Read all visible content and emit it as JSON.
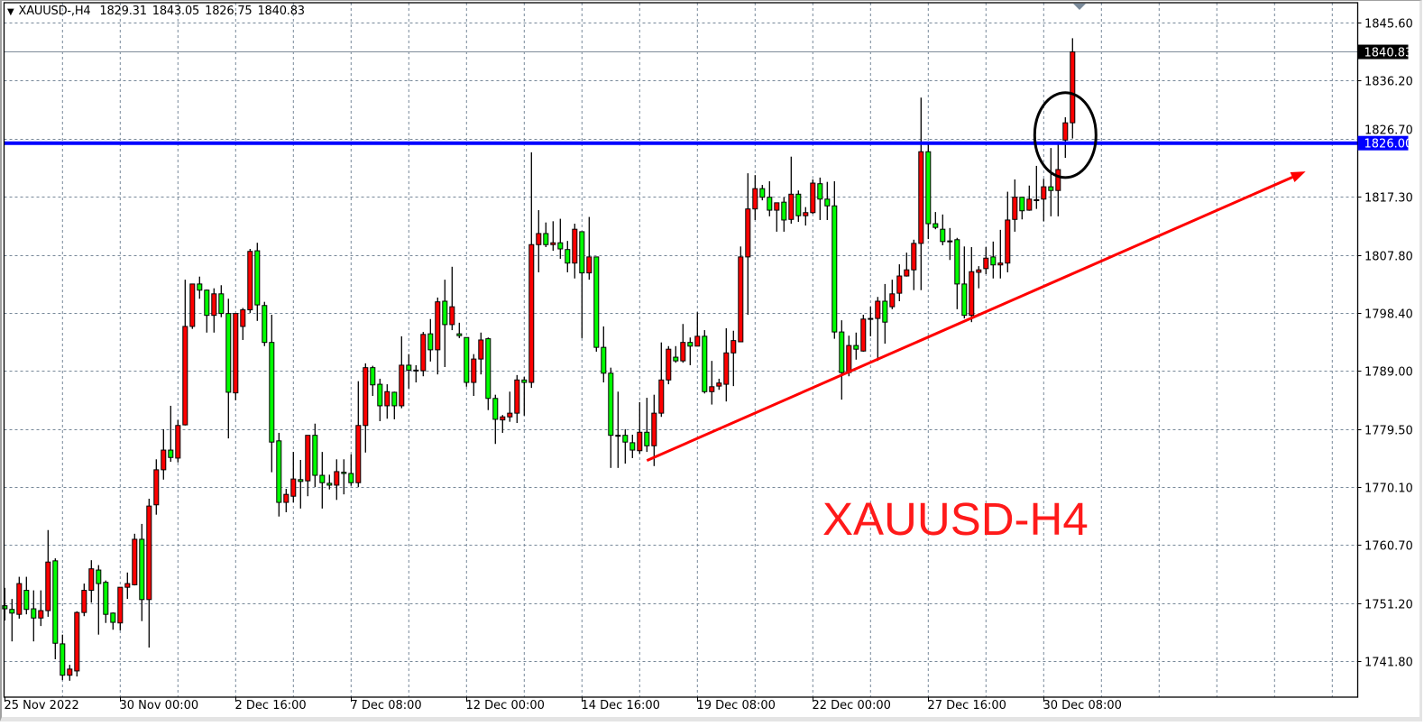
{
  "header": {
    "symbol": "XAUUSD-,H4",
    "open": "1829.31",
    "high": "1843.05",
    "low": "1826.75",
    "close": "1840.83"
  },
  "annotation_text": "XAUUSD-H4",
  "colors": {
    "bull": "#ff0000",
    "bear": "#00ff00",
    "grid": "#778899",
    "hline": "#0000ff",
    "trendline": "#ff0000",
    "ellipse": "#000000",
    "annotation_text": "#ff1a1a"
  },
  "chart_data": {
    "type": "candlestick",
    "title": "XAUUSD-,H4",
    "grid": true,
    "ylim": [
      1737.5,
      1847.9
    ],
    "y_ticks": [
      "1845.60",
      "1836.20",
      "1826.70",
      "1817.30",
      "1807.80",
      "1798.40",
      "1789.00",
      "1779.50",
      "1770.10",
      "1760.70",
      "1751.20",
      "1741.80"
    ],
    "x_tick_labels": [
      "25 Nov 2022",
      "30 Nov 00:00",
      "2 Dec 16:00",
      "7 Dec 08:00",
      "12 Dec 00:00",
      "14 Dec 16:00",
      "19 Dec 08:00",
      "22 Dec 00:00",
      "27 Dec 16:00",
      "30 Dec 08:00"
    ],
    "current_price": {
      "value": 1840.83,
      "label": "1840.83"
    },
    "horizontal_line": {
      "value": 1826.0,
      "label": "1826.00"
    },
    "trendline": {
      "start": {
        "bar": 89,
        "price": 1774.4
      },
      "end": {
        "bar": 180.3,
        "price": 1821.4
      },
      "arrow": true
    },
    "ellipse": {
      "center_bar": 147,
      "center_price": 1827.3,
      "bar_radius": 4.25,
      "price_radius": 6.9
    },
    "ohlc_order": [
      "open",
      "high",
      "low",
      "close"
    ],
    "candles": [
      [
        1750.8,
        1753.7,
        1748.4,
        1750.3
      ],
      [
        1750.2,
        1751.9,
        1745.0,
        1749.6
      ],
      [
        1749.4,
        1755.5,
        1748.7,
        1754.4
      ],
      [
        1753.3,
        1755.5,
        1749.4,
        1750.2
      ],
      [
        1750.3,
        1753.3,
        1745.0,
        1748.8
      ],
      [
        1748.8,
        1753.3,
        1747.5,
        1750.0
      ],
      [
        1750.0,
        1763.1,
        1749.0,
        1757.9
      ],
      [
        1758.1,
        1758.5,
        1742.1,
        1744.7
      ],
      [
        1744.6,
        1746.1,
        1738.7,
        1739.5
      ],
      [
        1739.5,
        1741.2,
        1738.6,
        1740.5
      ],
      [
        1740.2,
        1749.9,
        1739.3,
        1749.7
      ],
      [
        1749.7,
        1754.4,
        1749.1,
        1753.3
      ],
      [
        1753.3,
        1758.2,
        1751.3,
        1756.8
      ],
      [
        1756.6,
        1757.4,
        1746.1,
        1754.4
      ],
      [
        1754.6,
        1754.9,
        1748.0,
        1749.4
      ],
      [
        1749.6,
        1749.7,
        1746.9,
        1748.1
      ],
      [
        1748.0,
        1753.8,
        1746.8,
        1753.8
      ],
      [
        1753.8,
        1756.2,
        1751.9,
        1754.4
      ],
      [
        1754.2,
        1762.5,
        1754.1,
        1761.6
      ],
      [
        1761.6,
        1764.1,
        1748.3,
        1751.8
      ],
      [
        1751.8,
        1768.2,
        1744.0,
        1767.0
      ],
      [
        1767.2,
        1774.6,
        1765.6,
        1772.9
      ],
      [
        1772.9,
        1779.5,
        1771.3,
        1776.1
      ],
      [
        1776.1,
        1783.3,
        1774.2,
        1774.9
      ],
      [
        1774.8,
        1781.0,
        1774.1,
        1780.1
      ],
      [
        1780.2,
        1803.8,
        1780.1,
        1796.2
      ],
      [
        1796.2,
        1803.1,
        1795.8,
        1803.1
      ],
      [
        1803.1,
        1804.3,
        1800.7,
        1802.1
      ],
      [
        1802.1,
        1802.2,
        1795.2,
        1798.0
      ],
      [
        1798.0,
        1802.4,
        1795.2,
        1801.5
      ],
      [
        1801.5,
        1802.9,
        1797.7,
        1798.3
      ],
      [
        1798.3,
        1800.7,
        1778.0,
        1785.5
      ],
      [
        1785.4,
        1798.3,
        1784.2,
        1798.3
      ],
      [
        1796.2,
        1799.2,
        1794.0,
        1798.9
      ],
      [
        1798.9,
        1808.8,
        1798.4,
        1808.4
      ],
      [
        1808.5,
        1809.8,
        1797.1,
        1799.7
      ],
      [
        1799.6,
        1800.2,
        1793.0,
        1793.6
      ],
      [
        1793.6,
        1798.1,
        1772.5,
        1777.4
      ],
      [
        1777.6,
        1778.9,
        1765.3,
        1767.6
      ],
      [
        1767.6,
        1769.8,
        1766.0,
        1768.9
      ],
      [
        1768.6,
        1775.8,
        1767.6,
        1771.4
      ],
      [
        1771.3,
        1774.5,
        1766.6,
        1771.0
      ],
      [
        1771.1,
        1778.5,
        1768.6,
        1778.5
      ],
      [
        1778.5,
        1780.4,
        1770.1,
        1772.0
      ],
      [
        1772.0,
        1775.8,
        1766.6,
        1770.8
      ],
      [
        1770.7,
        1772.1,
        1769.7,
        1770.4
      ],
      [
        1770.4,
        1774.6,
        1768.0,
        1772.6
      ],
      [
        1772.5,
        1774.6,
        1768.9,
        1772.3
      ],
      [
        1772.3,
        1775.4,
        1770.3,
        1770.8
      ],
      [
        1770.8,
        1787.3,
        1770.1,
        1780.1
      ],
      [
        1780.1,
        1790.2,
        1775.7,
        1789.5
      ],
      [
        1789.5,
        1789.8,
        1784.9,
        1786.7
      ],
      [
        1786.8,
        1787.7,
        1780.8,
        1783.3
      ],
      [
        1783.3,
        1786.8,
        1781.2,
        1785.6
      ],
      [
        1785.5,
        1785.6,
        1781.1,
        1783.3
      ],
      [
        1783.3,
        1794.6,
        1782.9,
        1789.9
      ],
      [
        1789.9,
        1791.7,
        1786.1,
        1789.1
      ],
      [
        1789.1,
        1789.9,
        1787.1,
        1789.0
      ],
      [
        1789.0,
        1795.3,
        1788.1,
        1794.9
      ],
      [
        1795.0,
        1797.4,
        1790.5,
        1792.4
      ],
      [
        1792.4,
        1800.9,
        1788.4,
        1800.2
      ],
      [
        1800.3,
        1803.8,
        1789.6,
        1796.5
      ],
      [
        1796.5,
        1805.9,
        1795.6,
        1799.4
      ],
      [
        1795.0,
        1796.8,
        1794.3,
        1794.7
      ],
      [
        1794.4,
        1794.4,
        1786.4,
        1787.1
      ],
      [
        1787.1,
        1791.7,
        1784.9,
        1790.9
      ],
      [
        1790.9,
        1795.2,
        1788.4,
        1794.0
      ],
      [
        1794.2,
        1794.4,
        1782.6,
        1784.5
      ],
      [
        1784.5,
        1785.1,
        1777.1,
        1781.1
      ],
      [
        1781.0,
        1781.8,
        1778.9,
        1781.5
      ],
      [
        1781.5,
        1785.6,
        1780.7,
        1782.1
      ],
      [
        1782.1,
        1788.3,
        1780.5,
        1787.5
      ],
      [
        1787.5,
        1788.0,
        1781.7,
        1787.1
      ],
      [
        1787.1,
        1824.5,
        1786.2,
        1809.5
      ],
      [
        1809.5,
        1815.1,
        1805.0,
        1811.3
      ],
      [
        1811.3,
        1813.1,
        1809.1,
        1809.5
      ],
      [
        1809.5,
        1813.3,
        1808.5,
        1809.8
      ],
      [
        1809.8,
        1813.7,
        1807.2,
        1808.8
      ],
      [
        1808.7,
        1810.1,
        1805.0,
        1806.5
      ],
      [
        1806.5,
        1812.9,
        1804.0,
        1812.0
      ],
      [
        1811.6,
        1811.6,
        1794.3,
        1804.9
      ],
      [
        1804.9,
        1814.0,
        1803.8,
        1807.5
      ],
      [
        1807.5,
        1807.5,
        1792.1,
        1792.8
      ],
      [
        1792.8,
        1796.2,
        1787.1,
        1788.6
      ],
      [
        1788.6,
        1789.5,
        1773.2,
        1778.5
      ],
      [
        1778.5,
        1785.6,
        1773.2,
        1778.4
      ],
      [
        1778.5,
        1779.5,
        1773.9,
        1777.4
      ],
      [
        1777.3,
        1778.6,
        1774.8,
        1776.1
      ],
      [
        1776.0,
        1783.9,
        1775.5,
        1779.0
      ],
      [
        1779.0,
        1784.6,
        1775.8,
        1776.8
      ],
      [
        1776.8,
        1785.1,
        1773.5,
        1782.1
      ],
      [
        1782.1,
        1793.6,
        1781.5,
        1787.5
      ],
      [
        1787.5,
        1793.0,
        1786.8,
        1792.5
      ],
      [
        1791.2,
        1793.0,
        1790.3,
        1790.6
      ],
      [
        1790.6,
        1796.6,
        1790.3,
        1793.6
      ],
      [
        1793.6,
        1794.4,
        1789.9,
        1793.0
      ],
      [
        1793.0,
        1798.5,
        1793.0,
        1794.6
      ],
      [
        1794.6,
        1795.6,
        1785.3,
        1785.6
      ],
      [
        1785.6,
        1790.6,
        1783.5,
        1786.4
      ],
      [
        1786.5,
        1787.7,
        1785.9,
        1787.0
      ],
      [
        1786.8,
        1795.9,
        1784.0,
        1791.9
      ],
      [
        1791.9,
        1795.5,
        1786.5,
        1793.9
      ],
      [
        1793.7,
        1809.2,
        1793.7,
        1807.5
      ],
      [
        1807.5,
        1821.1,
        1798.1,
        1815.3
      ],
      [
        1815.3,
        1820.8,
        1813.5,
        1818.6
      ],
      [
        1818.6,
        1819.2,
        1816.7,
        1817.2
      ],
      [
        1817.2,
        1819.8,
        1814.1,
        1815.1
      ],
      [
        1815.1,
        1816.3,
        1811.6,
        1816.3
      ],
      [
        1816.4,
        1817.2,
        1811.6,
        1813.5
      ],
      [
        1813.6,
        1823.8,
        1812.9,
        1817.7
      ],
      [
        1817.7,
        1818.3,
        1813.2,
        1814.2
      ],
      [
        1814.2,
        1815.6,
        1812.6,
        1814.7
      ],
      [
        1814.7,
        1820.1,
        1814.5,
        1819.5
      ],
      [
        1819.4,
        1820.4,
        1813.5,
        1816.9
      ],
      [
        1816.9,
        1819.7,
        1813.5,
        1815.8
      ],
      [
        1815.8,
        1819.8,
        1794.2,
        1795.3
      ],
      [
        1795.3,
        1797.2,
        1784.3,
        1788.7
      ],
      [
        1788.7,
        1794.7,
        1788.1,
        1793.1
      ],
      [
        1793.1,
        1795.2,
        1790.8,
        1792.5
      ],
      [
        1792.2,
        1798.1,
        1792.1,
        1797.4
      ],
      [
        1797.5,
        1799.4,
        1794.6,
        1797.4
      ],
      [
        1797.5,
        1801.0,
        1790.6,
        1800.3
      ],
      [
        1800.3,
        1803.1,
        1793.4,
        1796.9
      ],
      [
        1799.4,
        1803.8,
        1799.0,
        1801.5
      ],
      [
        1801.6,
        1806.3,
        1800.3,
        1804.4
      ],
      [
        1804.4,
        1808.2,
        1804.3,
        1805.4
      ],
      [
        1805.4,
        1810.3,
        1802.1,
        1809.7
      ],
      [
        1809.7,
        1833.4,
        1802.1,
        1824.6
      ],
      [
        1824.6,
        1826.1,
        1810.4,
        1812.9
      ],
      [
        1812.9,
        1814.8,
        1812.0,
        1812.3
      ],
      [
        1812.0,
        1814.4,
        1809.4,
        1810.0
      ],
      [
        1810.1,
        1812.2,
        1807.0,
        1810.0
      ],
      [
        1810.3,
        1810.6,
        1799.0,
        1803.1
      ],
      [
        1803.1,
        1809.2,
        1797.5,
        1798.0
      ],
      [
        1798.0,
        1809.1,
        1796.9,
        1805.1
      ],
      [
        1805.0,
        1806.0,
        1802.4,
        1805.4
      ],
      [
        1805.6,
        1809.1,
        1804.7,
        1807.3
      ],
      [
        1807.5,
        1810.0,
        1804.0,
        1806.2
      ],
      [
        1806.2,
        1811.9,
        1804.0,
        1806.5
      ],
      [
        1806.5,
        1818.1,
        1805.0,
        1813.5
      ],
      [
        1813.6,
        1820.1,
        1811.6,
        1817.2
      ],
      [
        1817.2,
        1817.2,
        1813.6,
        1815.0
      ],
      [
        1815.1,
        1819.1,
        1815.0,
        1816.9
      ],
      [
        1816.7,
        1822.3,
        1815.3,
        1816.8
      ],
      [
        1816.9,
        1820.2,
        1813.3,
        1818.9
      ],
      [
        1818.9,
        1825.2,
        1814.1,
        1818.3
      ],
      [
        1818.3,
        1825.8,
        1814.1,
        1821.7
      ],
      [
        1826.5,
        1830.2,
        1823.6,
        1829.3
      ],
      [
        1829.31,
        1843.05,
        1826.75,
        1840.83
      ]
    ]
  }
}
